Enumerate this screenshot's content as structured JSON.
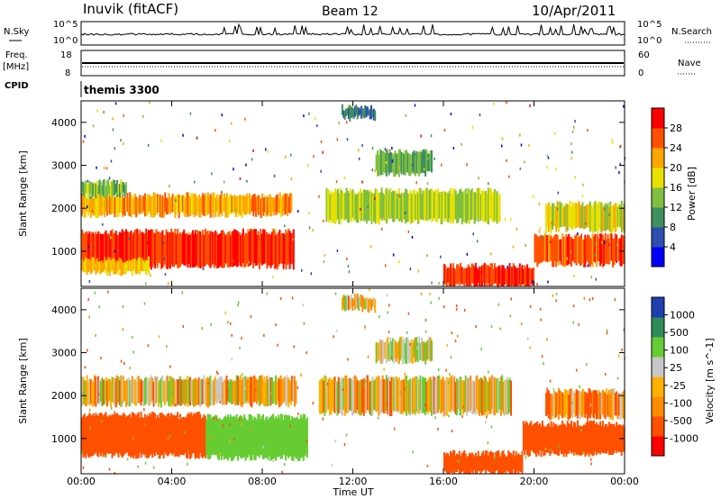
{
  "header": {
    "station": "Inuvik (fitACF)",
    "beam": "Beam 12",
    "date": "10/Apr/2011"
  },
  "labels": {
    "nsky": "N.Sky",
    "nsearch": "N.Search",
    "freq_top": "Freq.",
    "freq_unit": "[MHz]",
    "nave": "Nave",
    "cpid": "CPID",
    "cpid_value": "themis 3300",
    "xlabel": "Time UT"
  },
  "colors": {
    "power_scale": [
      "#0000ff",
      "#2f4fb0",
      "#3f8f5f",
      "#7fbf3f",
      "#e8e000",
      "#ffa500",
      "#ff5000",
      "#ff0000"
    ],
    "velocity_scale": [
      "#ff0000",
      "#ff5000",
      "#ff8c00",
      "#ffb000",
      "#c8c8c8",
      "#66cc33",
      "#2e8b57",
      "#1f3fb0"
    ]
  },
  "chart_data": [
    {
      "type": "line",
      "title": "N.Sky / N.Search",
      "x": [
        "00:00",
        "02:00",
        "04:00",
        "06:00",
        "08:00",
        "10:00",
        "12:00",
        "14:00",
        "16:00",
        "18:00",
        "20:00",
        "22:00",
        "00:00"
      ],
      "yticks_left": [
        "10^5",
        "10^0"
      ],
      "yticks_right": [
        "10^5",
        "10^0"
      ],
      "series": [
        {
          "name": "N.Sky",
          "values": [
            1.2,
            1.3,
            1.2,
            1.4,
            1.6,
            1.5,
            1.8,
            2.2,
            2.0,
            1.4,
            1.3,
            1.5,
            1.2
          ]
        }
      ]
    },
    {
      "type": "line",
      "title": "Freq. / Nave",
      "x": [
        "00:00",
        "04:00",
        "08:00",
        "12:00",
        "16:00",
        "20:00",
        "00:00"
      ],
      "yticks_left": [
        "18",
        "8"
      ],
      "yticks_right": [
        "60",
        "0"
      ],
      "series": [
        {
          "name": "Freq.",
          "values": [
            11,
            11,
            11,
            11,
            11,
            11,
            11
          ]
        },
        {
          "name": "Nave",
          "values": [
            22,
            22,
            22,
            22,
            22,
            22,
            22
          ]
        }
      ]
    },
    {
      "type": "heatmap",
      "ylabel": "Slant Range [km]",
      "colorbar_label": "Power [dB]",
      "colorbar_ticks": [
        "28",
        "24",
        "20",
        "16",
        "12",
        "8",
        "4"
      ],
      "xticks": [
        "00:00",
        "04:00",
        "08:00",
        "12:00",
        "16:00",
        "20:00",
        "00:00"
      ],
      "yticks": [
        "1000",
        "2000",
        "3000",
        "4000"
      ],
      "ylim": [
        180,
        4500
      ],
      "regions": [
        {
          "t0": 0.0,
          "t1": 9.4,
          "r0": 650,
          "r1": 1450,
          "value": 28
        },
        {
          "t0": 0.0,
          "t1": 3.0,
          "r0": 500,
          "r1": 800,
          "value": 20
        },
        {
          "t0": 0.0,
          "t1": 9.3,
          "r0": 1850,
          "r1": 2300,
          "value": 22
        },
        {
          "t0": 0.0,
          "t1": 2.0,
          "r0": 2300,
          "r1": 2600,
          "value": 14
        },
        {
          "t0": 10.8,
          "t1": 18.5,
          "r0": 1700,
          "r1": 2400,
          "value": 16
        },
        {
          "t0": 16.0,
          "t1": 20.0,
          "r0": 200,
          "r1": 650,
          "value": 28
        },
        {
          "t0": 20.0,
          "t1": 24.0,
          "r0": 700,
          "r1": 1350,
          "value": 26
        },
        {
          "t0": 20.5,
          "t1": 24.0,
          "r0": 1500,
          "r1": 2100,
          "value": 18
        },
        {
          "t0": 13.0,
          "t1": 15.5,
          "r0": 2800,
          "r1": 3300,
          "value": 12
        },
        {
          "t0": 11.5,
          "t1": 13.0,
          "r0": 4100,
          "r1": 4350,
          "value": 8
        }
      ]
    },
    {
      "type": "heatmap",
      "ylabel": "Slant Range [km]",
      "colorbar_label": "Velocity [m s^-1]",
      "colorbar_ticks": [
        "1000",
        "500",
        "100",
        "25",
        "-25",
        "-100",
        "-500",
        "-1000"
      ],
      "xticks": [
        "00:00",
        "04:00",
        "08:00",
        "12:00",
        "16:00",
        "20:00",
        "00:00"
      ],
      "yticks": [
        "1000",
        "2000",
        "3000",
        "4000"
      ],
      "xlabel": "Time UT",
      "ylim": [
        180,
        4500
      ],
      "regions": [
        {
          "t0": 0.0,
          "t1": 5.5,
          "r0": 600,
          "r1": 1550,
          "value": -300
        },
        {
          "t0": 5.5,
          "t1": 10.0,
          "r0": 550,
          "r1": 1500,
          "value": 300
        },
        {
          "t0": 0.0,
          "t1": 9.5,
          "r0": 1800,
          "r1": 2400,
          "value": 0
        },
        {
          "t0": 10.5,
          "t1": 19.0,
          "r0": 1600,
          "r1": 2400,
          "value": 0
        },
        {
          "t0": 16.0,
          "t1": 19.5,
          "r0": 200,
          "r1": 650,
          "value": -300
        },
        {
          "t0": 19.5,
          "t1": 24.0,
          "r0": 650,
          "r1": 1350,
          "value": -300
        },
        {
          "t0": 20.5,
          "t1": 24.0,
          "r0": 1500,
          "r1": 2100,
          "value": -80
        },
        {
          "t0": 13.0,
          "t1": 15.5,
          "r0": 2800,
          "r1": 3300,
          "value": 80
        },
        {
          "t0": 11.5,
          "t1": 13.0,
          "r0": 4000,
          "r1": 4300,
          "value": 0
        }
      ]
    }
  ]
}
